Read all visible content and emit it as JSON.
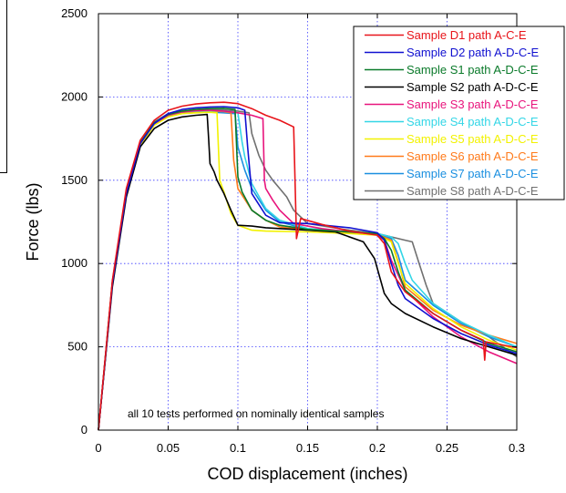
{
  "chart_data": {
    "type": "line",
    "title": "",
    "xlabel": "COD displacement (inches)",
    "ylabel": "Force (lbs)",
    "xlim": [
      0,
      0.3
    ],
    "ylim": [
      0,
      2500
    ],
    "xticks": [
      0,
      0.05,
      0.1,
      0.15,
      0.2,
      0.25,
      0.3
    ],
    "xtick_labels": [
      "0",
      "0.05",
      "0.1",
      "0.15",
      "0.2",
      "0.25",
      "0.3"
    ],
    "yticks": [
      0,
      500,
      1000,
      1500,
      2000,
      2500
    ],
    "ytick_labels": [
      "0",
      "500",
      "1000",
      "1500",
      "2000",
      "2500"
    ],
    "grid": true,
    "legend_position": "top-right",
    "annotation": "all 10 tests performed on nominally identical samples",
    "series": [
      {
        "name": "Sample D1 path A-C-E",
        "color": "#e8141a",
        "x": [
          0,
          0.005,
          0.01,
          0.02,
          0.03,
          0.04,
          0.05,
          0.06,
          0.07,
          0.08,
          0.09,
          0.1,
          0.11,
          0.12,
          0.13,
          0.14,
          0.141,
          0.142,
          0.145,
          0.16,
          0.18,
          0.2,
          0.205,
          0.21,
          0.22,
          0.24,
          0.26,
          0.276,
          0.277,
          0.278,
          0.3
        ],
        "y": [
          0,
          450,
          900,
          1450,
          1740,
          1860,
          1920,
          1945,
          1958,
          1965,
          1968,
          1960,
          1930,
          1890,
          1860,
          1820,
          1500,
          1150,
          1270,
          1235,
          1195,
          1170,
          1120,
          950,
          830,
          700,
          600,
          540,
          420,
          530,
          495
        ]
      },
      {
        "name": "Sample D2 path A-D-C-E",
        "color": "#1010d0",
        "x": [
          0,
          0.005,
          0.01,
          0.02,
          0.03,
          0.04,
          0.05,
          0.06,
          0.07,
          0.08,
          0.09,
          0.1,
          0.105,
          0.107,
          0.11,
          0.12,
          0.13,
          0.15,
          0.18,
          0.2,
          0.205,
          0.21,
          0.215,
          0.22,
          0.24,
          0.26,
          0.28,
          0.3
        ],
        "y": [
          0,
          440,
          880,
          1420,
          1720,
          1840,
          1900,
          1925,
          1935,
          1940,
          1942,
          1935,
          1920,
          1700,
          1420,
          1290,
          1245,
          1240,
          1215,
          1185,
          1140,
          1000,
          870,
          790,
          670,
          580,
          510,
          460
        ]
      },
      {
        "name": "Sample S1 path A-D-C-E",
        "color": "#0a7a2a",
        "x": [
          0,
          0.005,
          0.01,
          0.02,
          0.03,
          0.04,
          0.05,
          0.06,
          0.07,
          0.08,
          0.09,
          0.098,
          0.1,
          0.103,
          0.11,
          0.12,
          0.13,
          0.15,
          0.18,
          0.2,
          0.205,
          0.21,
          0.215,
          0.22,
          0.24,
          0.26,
          0.28,
          0.3
        ],
        "y": [
          0,
          445,
          890,
          1430,
          1725,
          1845,
          1895,
          1915,
          1925,
          1930,
          1932,
          1925,
          1520,
          1430,
          1320,
          1260,
          1230,
          1205,
          1190,
          1180,
          1150,
          1080,
          950,
          840,
          700,
          600,
          520,
          470
        ]
      },
      {
        "name": "Sample S2 path A-D-C-E",
        "color": "#000000",
        "x": [
          0,
          0.005,
          0.01,
          0.02,
          0.03,
          0.04,
          0.05,
          0.06,
          0.07,
          0.078,
          0.079,
          0.08,
          0.083,
          0.085,
          0.09,
          0.095,
          0.1,
          0.11,
          0.12,
          0.15,
          0.17,
          0.19,
          0.198,
          0.205,
          0.21,
          0.22,
          0.24,
          0.26,
          0.28,
          0.3
        ],
        "y": [
          0,
          430,
          860,
          1400,
          1700,
          1810,
          1860,
          1880,
          1890,
          1895,
          1750,
          1600,
          1550,
          1500,
          1420,
          1320,
          1230,
          1225,
          1215,
          1200,
          1190,
          1130,
          1030,
          820,
          760,
          700,
          620,
          550,
          500,
          450
        ]
      },
      {
        "name": "Sample S3 path A-D-C-E",
        "color": "#e8147c",
        "x": [
          0,
          0.005,
          0.01,
          0.02,
          0.03,
          0.04,
          0.05,
          0.06,
          0.07,
          0.08,
          0.09,
          0.1,
          0.11,
          0.118,
          0.119,
          0.12,
          0.125,
          0.13,
          0.14,
          0.16,
          0.18,
          0.2,
          0.205,
          0.21,
          0.22,
          0.24,
          0.26,
          0.28,
          0.3
        ],
        "y": [
          0,
          440,
          880,
          1420,
          1720,
          1840,
          1890,
          1910,
          1918,
          1920,
          1915,
          1905,
          1890,
          1870,
          1500,
          1450,
          1380,
          1320,
          1240,
          1210,
          1190,
          1175,
          1140,
          1020,
          840,
          680,
          560,
          470,
          400
        ]
      },
      {
        "name": "Sample S4 path A-D-C-E",
        "color": "#33d6e6",
        "x": [
          0,
          0.005,
          0.01,
          0.02,
          0.03,
          0.04,
          0.05,
          0.06,
          0.07,
          0.08,
          0.09,
          0.1,
          0.103,
          0.105,
          0.11,
          0.12,
          0.13,
          0.15,
          0.18,
          0.2,
          0.21,
          0.215,
          0.22,
          0.225,
          0.24,
          0.26,
          0.28,
          0.3
        ],
        "y": [
          0,
          445,
          890,
          1430,
          1720,
          1840,
          1890,
          1910,
          1915,
          1918,
          1915,
          1905,
          1730,
          1640,
          1480,
          1330,
          1260,
          1210,
          1190,
          1180,
          1160,
          1120,
          1000,
          900,
          760,
          650,
          570,
          500
        ]
      },
      {
        "name": "Sample S5 path A-D-C-E",
        "color": "#f2f200",
        "x": [
          0,
          0.005,
          0.01,
          0.02,
          0.03,
          0.04,
          0.05,
          0.06,
          0.07,
          0.08,
          0.085,
          0.087,
          0.09,
          0.095,
          0.1,
          0.11,
          0.12,
          0.15,
          0.18,
          0.2,
          0.21,
          0.215,
          0.22,
          0.24,
          0.26,
          0.28,
          0.3
        ],
        "y": [
          0,
          440,
          880,
          1420,
          1710,
          1830,
          1880,
          1900,
          1905,
          1908,
          1905,
          1500,
          1430,
          1300,
          1230,
          1200,
          1195,
          1190,
          1180,
          1170,
          1130,
          1000,
          880,
          730,
          620,
          540,
          480
        ]
      },
      {
        "name": "Sample S6 path A-D-C-E",
        "color": "#ff7a1a",
        "x": [
          0,
          0.005,
          0.01,
          0.02,
          0.03,
          0.04,
          0.05,
          0.06,
          0.07,
          0.08,
          0.09,
          0.095,
          0.097,
          0.1,
          0.11,
          0.12,
          0.13,
          0.15,
          0.18,
          0.2,
          0.21,
          0.215,
          0.22,
          0.24,
          0.26,
          0.28,
          0.3
        ],
        "y": [
          0,
          445,
          890,
          1430,
          1720,
          1840,
          1890,
          1905,
          1912,
          1915,
          1912,
          1905,
          1620,
          1450,
          1320,
          1260,
          1220,
          1200,
          1185,
          1175,
          1140,
          1010,
          860,
          720,
          630,
          570,
          520
        ]
      },
      {
        "name": "Sample S7 path A-D-C-E",
        "color": "#1a8fe0",
        "x": [
          0,
          0.005,
          0.01,
          0.02,
          0.03,
          0.04,
          0.05,
          0.06,
          0.07,
          0.08,
          0.09,
          0.098,
          0.1,
          0.105,
          0.11,
          0.12,
          0.13,
          0.15,
          0.18,
          0.2,
          0.21,
          0.215,
          0.22,
          0.24,
          0.26,
          0.28,
          0.3
        ],
        "y": [
          0,
          440,
          885,
          1425,
          1715,
          1835,
          1885,
          1900,
          1908,
          1910,
          1905,
          1900,
          1700,
          1560,
          1450,
          1320,
          1250,
          1205,
          1190,
          1180,
          1150,
          1050,
          900,
          750,
          640,
          560,
          500
        ]
      },
      {
        "name": "Sample S8 path A-D-C-E",
        "color": "#707070",
        "x": [
          0,
          0.005,
          0.01,
          0.02,
          0.03,
          0.04,
          0.05,
          0.06,
          0.07,
          0.08,
          0.09,
          0.1,
          0.108,
          0.11,
          0.115,
          0.12,
          0.125,
          0.13,
          0.135,
          0.14,
          0.15,
          0.18,
          0.2,
          0.22,
          0.225,
          0.23,
          0.235,
          0.24,
          0.26,
          0.28,
          0.3
        ],
        "y": [
          0,
          445,
          890,
          1430,
          1725,
          1850,
          1900,
          1915,
          1922,
          1925,
          1922,
          1915,
          1905,
          1780,
          1650,
          1560,
          1500,
          1450,
          1400,
          1320,
          1240,
          1200,
          1180,
          1140,
          1130,
          1000,
          870,
          760,
          650,
          560,
          440
        ]
      }
    ]
  }
}
